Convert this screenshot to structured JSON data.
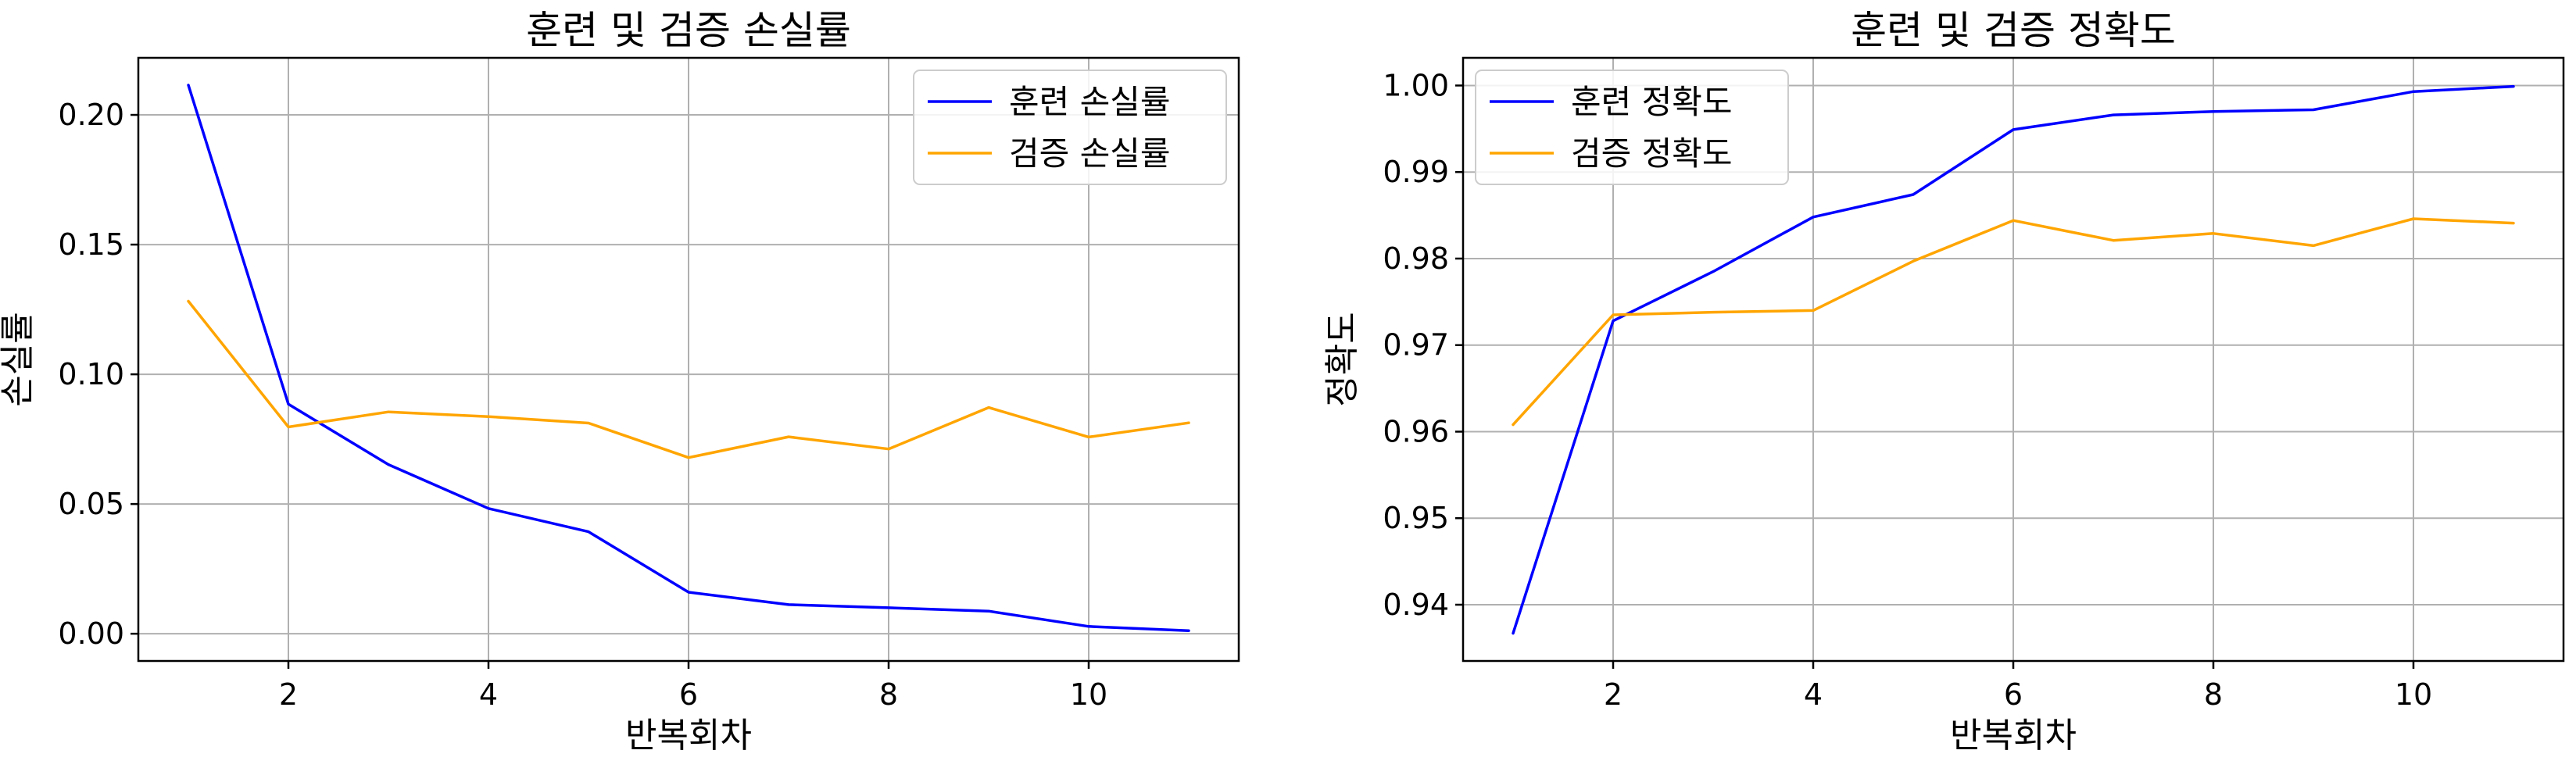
{
  "chart_data": [
    {
      "type": "line",
      "title": "훈련 및 검증 손실률",
      "xlabel": "반복회차",
      "ylabel": "손실률",
      "x": [
        1,
        2,
        3,
        4,
        5,
        6,
        7,
        8,
        9,
        10,
        11
      ],
      "xlim": [
        0.5,
        11.5
      ],
      "ylim": [
        -0.0105,
        0.222
      ],
      "xticks": [
        2,
        4,
        6,
        8,
        10
      ],
      "yticks": [
        0.0,
        0.05,
        0.1,
        0.15,
        0.2
      ],
      "ytick_labels": [
        "0.00",
        "0.05",
        "0.10",
        "0.15",
        "0.20"
      ],
      "grid": true,
      "legend_position": "top-right",
      "series": [
        {
          "name": "훈련 손실률",
          "color": "#0000ff",
          "values": [
            0.2115,
            0.0885,
            0.0652,
            0.0483,
            0.0393,
            0.016,
            0.0112,
            0.01,
            0.0087,
            0.0028,
            0.0012
          ]
        },
        {
          "name": "검증 손실률",
          "color": "#ffa500",
          "values": [
            0.1282,
            0.0797,
            0.0855,
            0.0837,
            0.0812,
            0.0679,
            0.0759,
            0.0712,
            0.0872,
            0.0758,
            0.0813
          ]
        }
      ]
    },
    {
      "type": "line",
      "title": "훈련 및 검증 정확도",
      "xlabel": "반복회차",
      "ylabel": "정확도",
      "x": [
        1,
        2,
        3,
        4,
        5,
        6,
        7,
        8,
        9,
        10,
        11
      ],
      "xlim": [
        0.5,
        11.5
      ],
      "ylim": [
        0.9335,
        1.0032
      ],
      "xticks": [
        2,
        4,
        6,
        8,
        10
      ],
      "yticks": [
        0.94,
        0.95,
        0.96,
        0.97,
        0.98,
        0.99,
        1.0
      ],
      "ytick_labels": [
        "0.94",
        "0.95",
        "0.96",
        "0.97",
        "0.98",
        "0.99",
        "1.00"
      ],
      "grid": true,
      "legend_position": "top-left",
      "series": [
        {
          "name": "훈련 정확도",
          "color": "#0000ff",
          "values": [
            0.9367,
            0.9728,
            0.9785,
            0.9848,
            0.9874,
            0.9949,
            0.9966,
            0.997,
            0.9972,
            0.9993,
            0.9999
          ]
        },
        {
          "name": "검증 정확도",
          "color": "#ffa500",
          "values": [
            0.9608,
            0.9735,
            0.9738,
            0.974,
            0.9797,
            0.9844,
            0.9821,
            0.9829,
            0.9815,
            0.9846,
            0.9841
          ]
        }
      ]
    }
  ]
}
